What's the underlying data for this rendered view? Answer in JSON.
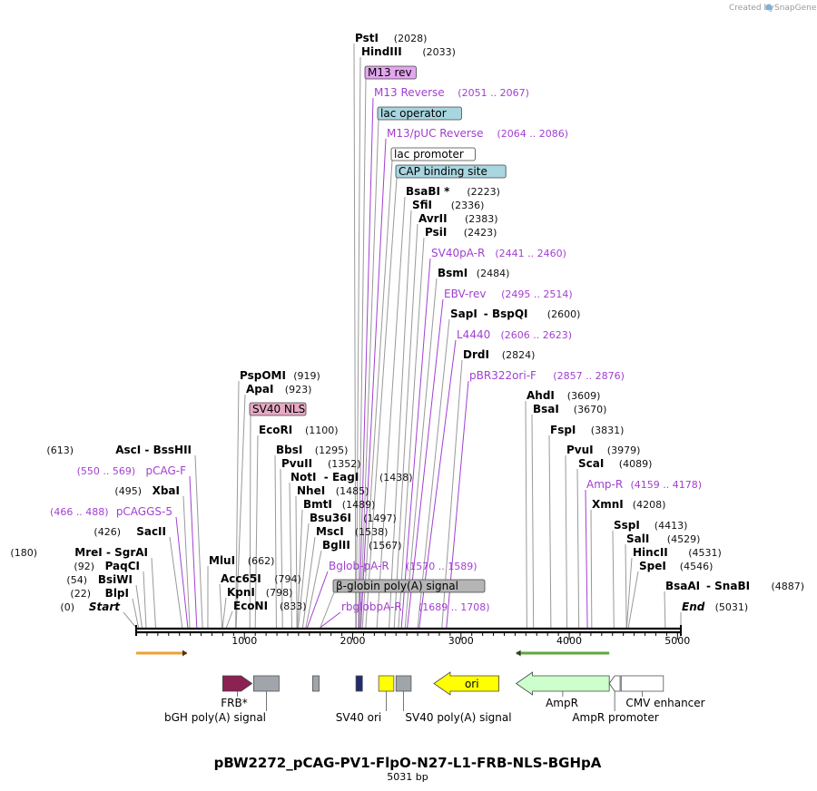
{
  "title": "pBW2272_pCAG-PV1-FlpO-N27-L1-FRB-NLS-BGHpA",
  "subtitle": "5031 bp",
  "credit": "Created by",
  "brand": "SnapGene",
  "seq_length": 5031,
  "ticks": [
    {
      "value": 1000,
      "label": "1000"
    },
    {
      "value": 2000,
      "label": "2000"
    },
    {
      "value": 3000,
      "label": "3000"
    },
    {
      "value": 4000,
      "label": "4000"
    },
    {
      "value": 5000,
      "label": "5000"
    }
  ],
  "top_sites": [
    {
      "name": "PstI",
      "pos": "(2028)",
      "bp": 2028
    },
    {
      "name": "HindIII",
      "pos": "(2033)",
      "bp": 2033
    },
    {
      "name": "BsaBI *",
      "pos": "(2223)",
      "bp": 2223
    },
    {
      "name": "SfiI",
      "pos": "(2336)",
      "bp": 2336
    },
    {
      "name": "AvrII",
      "pos": "(2383)",
      "bp": 2383
    },
    {
      "name": "PsiI",
      "pos": "(2423)",
      "bp": 2423
    },
    {
      "name": "BsmI",
      "pos": "(2484)",
      "bp": 2484
    },
    {
      "name": "SapI",
      "name2": "BspQI",
      "pos": "(2600)",
      "bp": 2600
    },
    {
      "name": "DrdI",
      "pos": "(2824)",
      "bp": 2824
    }
  ],
  "top_primers": [
    {
      "name": "M13 Reverse",
      "pos": "(2051 .. 2067)",
      "bp": 2059
    },
    {
      "name": "M13/pUC Reverse",
      "pos": "(2064 .. 2086)",
      "bp": 2075
    },
    {
      "name": "SV40pA-R",
      "pos": "(2441 .. 2460)",
      "bp": 2450
    },
    {
      "name": "EBV-rev",
      "pos": "(2495 .. 2514)",
      "bp": 2504
    },
    {
      "name": "L4440",
      "pos": "(2606 .. 2623)",
      "bp": 2614
    },
    {
      "name": "pBR322ori-F",
      "pos": "(2857 .. 2876)",
      "bp": 2866
    }
  ],
  "top_boxes": [
    {
      "name": "M13 rev",
      "color": "#e3a6ef",
      "bp": 2052
    },
    {
      "name": "lac operator",
      "color": "#a8d6e0",
      "bp": 2070
    },
    {
      "name": "lac promoter",
      "color": "#ffffff",
      "bp": 2090
    },
    {
      "name": "CAP binding site",
      "color": "#a8d6e0",
      "bp": 2120
    }
  ],
  "mid_sites": [
    {
      "name": "PspOMI",
      "pos": "(919)",
      "bp": 919
    },
    {
      "name": "ApaI",
      "pos": "(923)",
      "bp": 923
    },
    {
      "name": "EcoRI",
      "pos": "(1100)",
      "bp": 1100
    },
    {
      "name": "BbsI",
      "pos": "(1295)",
      "bp": 1295
    },
    {
      "name": "PvuII",
      "pos": "(1352)",
      "bp": 1352
    },
    {
      "name": "NotI",
      "name2": "EagI",
      "pos": "(1438)",
      "bp": 1438
    },
    {
      "name": "NheI",
      "pos": "(1485)",
      "bp": 1485
    },
    {
      "name": "BmtI",
      "pos": "(1489)",
      "bp": 1489
    },
    {
      "name": "Bsu36I",
      "pos": "(1497)",
      "bp": 1497
    },
    {
      "name": "MscI",
      "pos": "(1538)",
      "bp": 1538
    },
    {
      "name": "BglII",
      "pos": "(1567)",
      "bp": 1567
    },
    {
      "name": "MluI",
      "pos": "(662)",
      "bp": 662
    },
    {
      "name": "Acc65I",
      "pos": "(794)",
      "bp": 794
    },
    {
      "name": "KpnI",
      "pos": "(798)",
      "bp": 798
    },
    {
      "name": "EcoNI",
      "pos": "(833)",
      "bp": 833
    }
  ],
  "mid_primers": [
    {
      "name": "Bglob-pA-R",
      "pos": "(1570 .. 1589)",
      "bp": 1580
    },
    {
      "name": "rbglobpA-R",
      "pos": "(1689 .. 1708)",
      "bp": 1698
    }
  ],
  "mid_boxes": [
    {
      "name": "SV40 NLS",
      "color": "#e6a9c4",
      "bp": 1050
    },
    {
      "name": "β-globin poly(A) signal",
      "color": "#b5b5b5",
      "bp": 1700
    }
  ],
  "left_sites": [
    {
      "name": "AscI",
      "name2": "BssHII",
      "pos": "(613)",
      "bp": 613
    },
    {
      "name": "XbaI",
      "pos": "(495)",
      "bp": 495
    },
    {
      "name": "SacII",
      "pos": "(426)",
      "bp": 426
    },
    {
      "name": "MreI",
      "name2": "SgrAI",
      "pos": "(180)",
      "bp": 180
    },
    {
      "name": "PaqCI",
      "pos": "(92)",
      "bp": 92
    },
    {
      "name": "BsiWI",
      "pos": "(54)",
      "bp": 54
    },
    {
      "name": "BlpI",
      "pos": "(22)",
      "bp": 22
    },
    {
      "name": "Start",
      "pos": "(0)",
      "bp": 0
    }
  ],
  "left_primers": [
    {
      "name": "pCAG-F",
      "pos": "(550 .. 569)",
      "bp": 560
    },
    {
      "name": "pCAGGS-5",
      "pos": "(466 .. 488)",
      "bp": 477
    }
  ],
  "right_sites": [
    {
      "name": "AhdI",
      "pos": "(3609)",
      "bp": 3609
    },
    {
      "name": "BsaI",
      "pos": "(3670)",
      "bp": 3670
    },
    {
      "name": "FspI",
      "pos": "(3831)",
      "bp": 3831
    },
    {
      "name": "PvuI",
      "pos": "(3979)",
      "bp": 3979
    },
    {
      "name": "ScaI",
      "pos": "(4089)",
      "bp": 4089
    },
    {
      "name": "XmnI",
      "pos": "(4208)",
      "bp": 4208
    },
    {
      "name": "SspI",
      "pos": "(4413)",
      "bp": 4413
    },
    {
      "name": "SalI",
      "pos": "(4529)",
      "bp": 4529
    },
    {
      "name": "HincII",
      "pos": "(4531)",
      "bp": 4531
    },
    {
      "name": "SpeI",
      "pos": "(4546)",
      "bp": 4546
    },
    {
      "name": "BsaAI",
      "name2": "SnaBI",
      "pos": "(4887)",
      "bp": 4887
    },
    {
      "name": "End",
      "pos": "(5031)",
      "bp": 5031
    }
  ],
  "right_primers": [
    {
      "name": "Amp-R",
      "pos": "(4159 .. 4178)",
      "bp": 4168
    }
  ],
  "features": [
    {
      "name": "FRB*",
      "start": 800,
      "end": 1070,
      "color": "#8b2252",
      "type": "arrow-right"
    },
    {
      "name": "bGH poly(A) signal",
      "start": 1085,
      "end": 1320,
      "color": "#a0a4ab",
      "type": "box"
    },
    {
      "name": "",
      "start": 1630,
      "end": 1690,
      "color": "#a0a4ab",
      "type": "box"
    },
    {
      "name": "",
      "start": 2030,
      "end": 2090,
      "color": "#202b6b",
      "type": "box"
    },
    {
      "name": "SV40 ori",
      "start": 2240,
      "end": 2380,
      "color": "#ffff00",
      "type": "box"
    },
    {
      "name": "SV40 poly(A) signal",
      "start": 2400,
      "end": 2540,
      "color": "#a0a4ab",
      "type": "box"
    },
    {
      "name": "ori",
      "start": 2750,
      "end": 3350,
      "color": "#ffff00",
      "type": "arrow-left"
    },
    {
      "name": "AmpR",
      "start": 3510,
      "end": 4370,
      "color": "#ccffcc",
      "type": "arrow-left"
    },
    {
      "name": "AmpR promoter",
      "start": 4370,
      "end": 4470,
      "color": "#ffffff",
      "type": "arrow-left-small"
    },
    {
      "name": "CMV enhancer",
      "start": 4480,
      "end": 4870,
      "color": "#ffffff",
      "type": "box"
    }
  ],
  "orf_top_left": {
    "start": 0,
    "end": 470,
    "color": "#f0a030"
  },
  "orf_top_right": {
    "start": 3510,
    "end": 4370,
    "color": "#5fa83c"
  }
}
